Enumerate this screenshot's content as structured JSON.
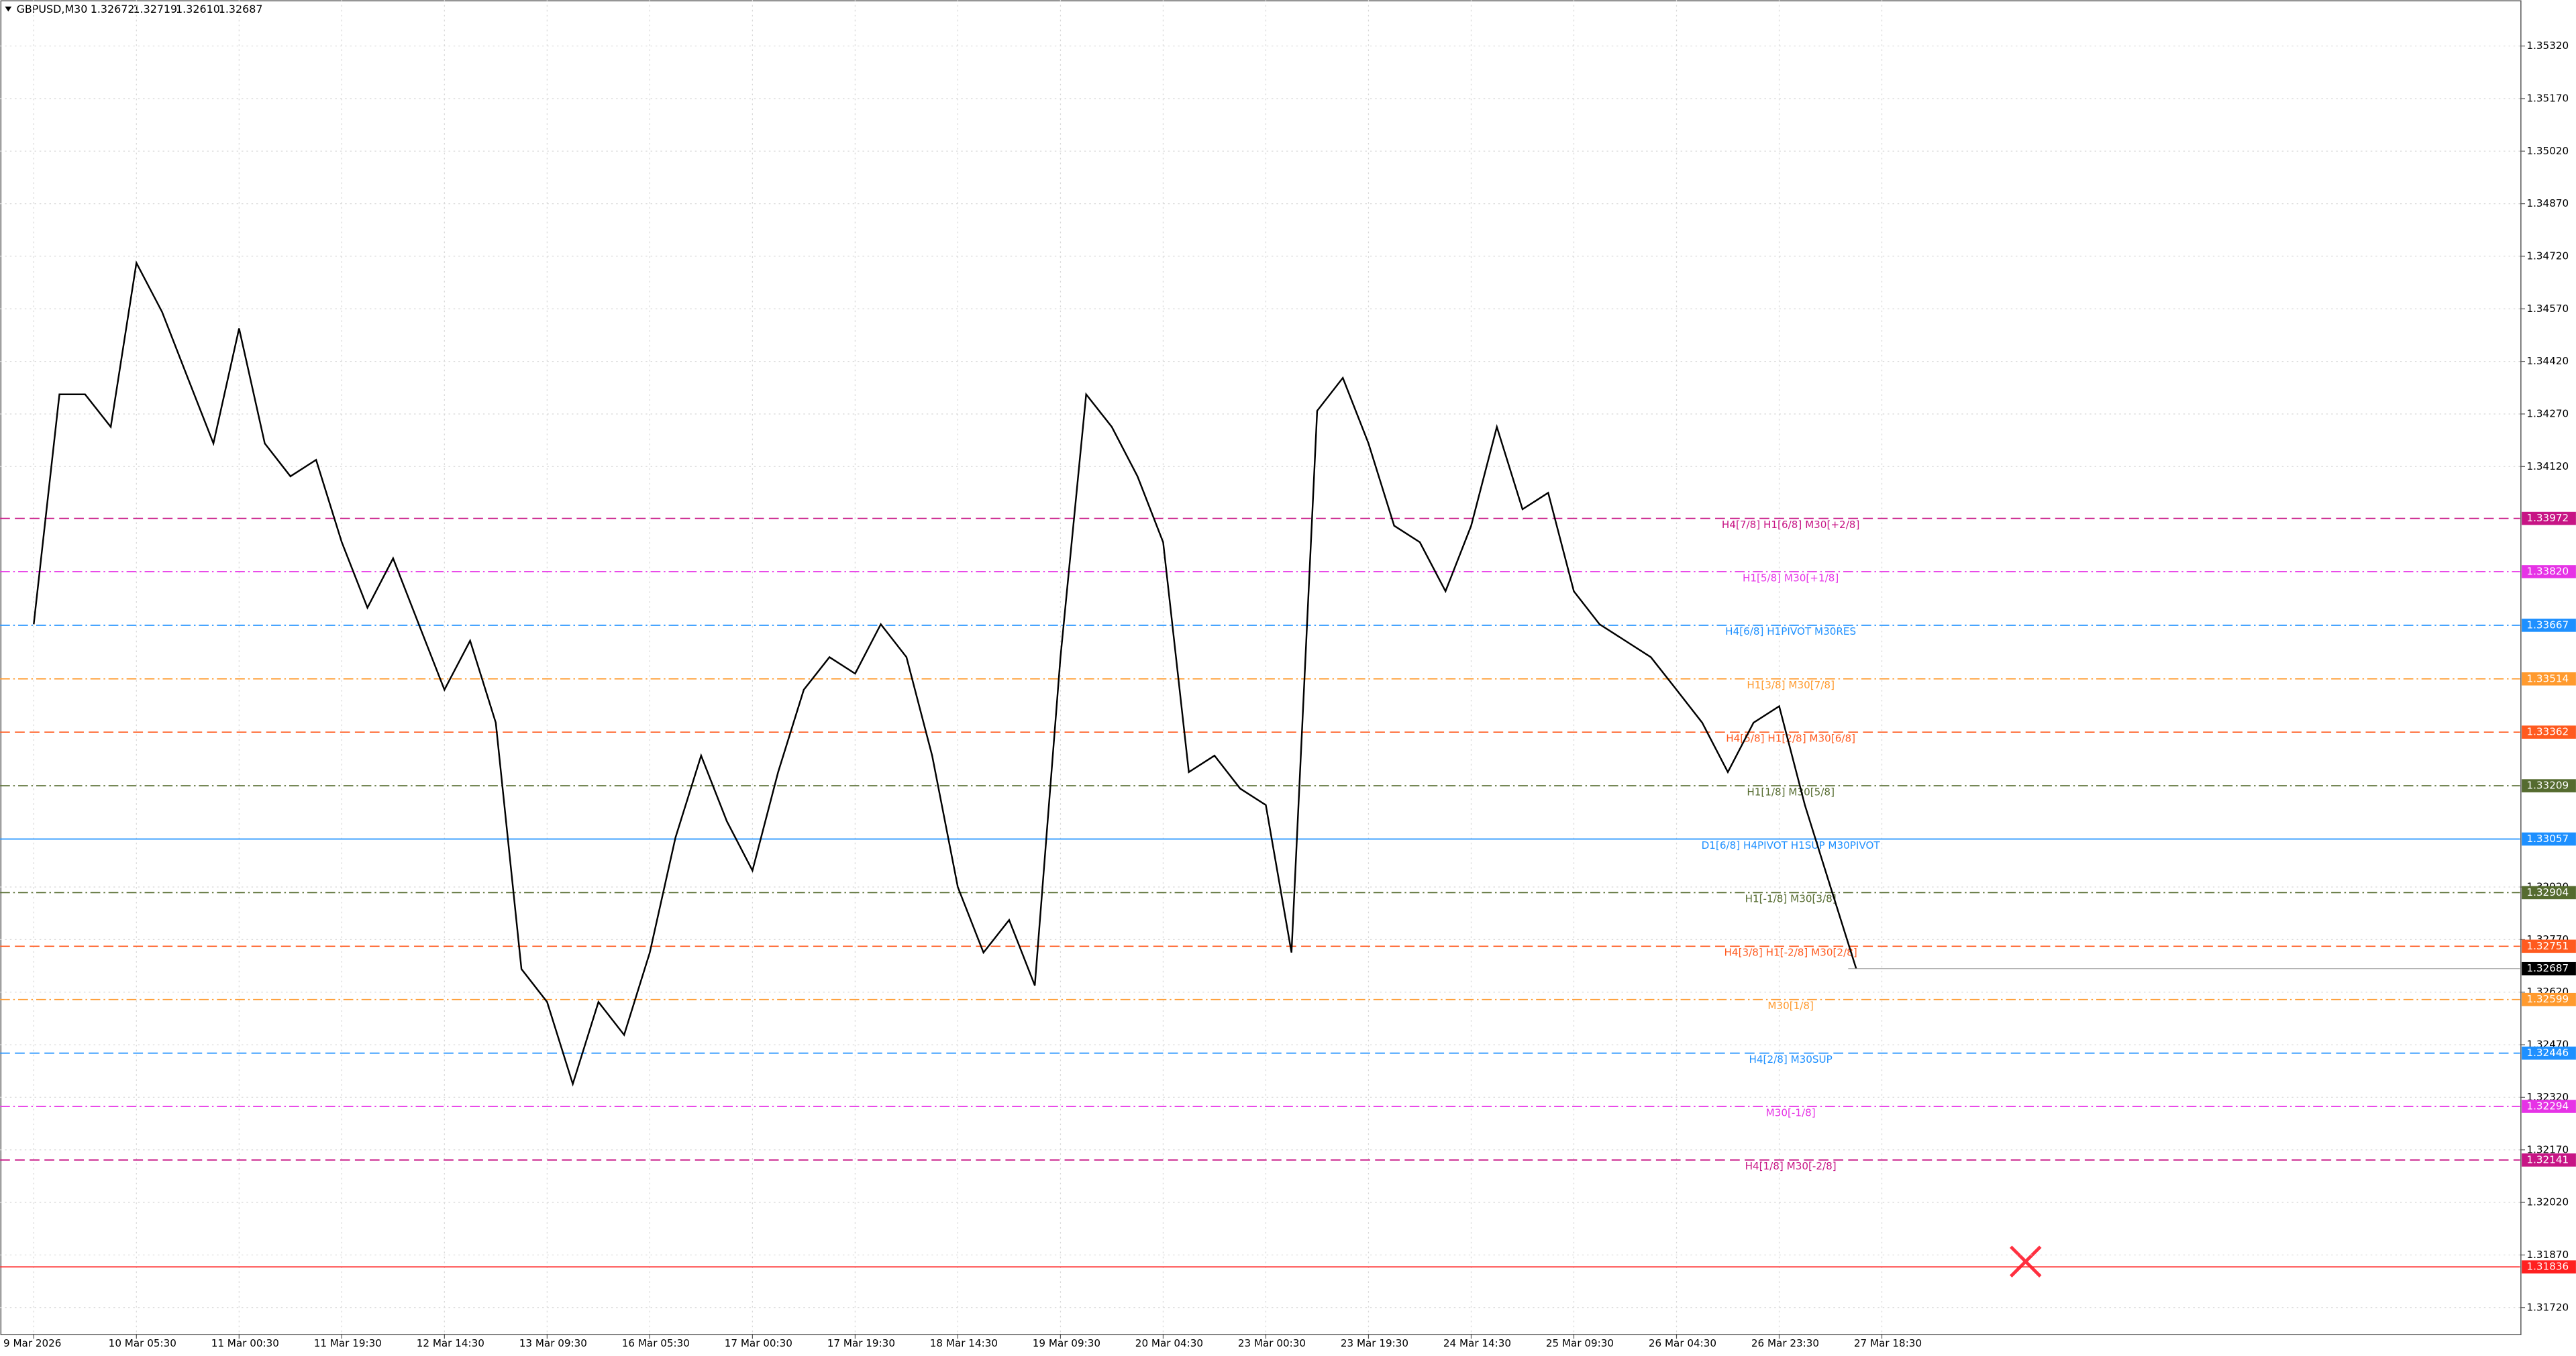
{
  "header": {
    "symbol": "GBPUSD,M30",
    "quotes": [
      "1.32672",
      "1.32719",
      "1.32610",
      "1.32687"
    ]
  },
  "chart_data": {
    "type": "line",
    "color": "#000000",
    "grid": true,
    "categories": [
      "9 Mar 2026",
      null,
      null,
      null,
      "10 Mar 05:30",
      null,
      null,
      null,
      "11 Mar 00:30",
      null,
      null,
      null,
      "11 Mar 19:30",
      null,
      null,
      null,
      "12 Mar 14:30",
      null,
      null,
      null,
      "13 Mar 09:30",
      null,
      null,
      null,
      "16 Mar 05:30",
      null,
      null,
      null,
      "17 Mar 00:30",
      null,
      null,
      null,
      "17 Mar 19:30",
      null,
      null,
      null,
      "18 Mar 14:30",
      null,
      null,
      null,
      "19 Mar 09:30",
      null,
      null,
      null,
      "20 Mar 04:30",
      null,
      null,
      null,
      "23 Mar 00:30",
      null,
      null,
      null,
      "23 Mar 19:30",
      null,
      null,
      null,
      "24 Mar 14:30",
      null,
      null,
      null,
      "25 Mar 09:30",
      null,
      null,
      null,
      "26 Mar 04:30",
      null,
      null,
      null,
      "26 Mar 23:30",
      null,
      null,
      null,
      "27 Mar 18:30"
    ],
    "values": [
      1.3367,
      1.34326,
      1.34326,
      1.34233,
      1.34701,
      1.34561,
      1.34373,
      1.34186,
      1.34514,
      1.34186,
      1.34092,
      1.34139,
      1.33904,
      1.33717,
      1.33858,
      1.3367,
      1.33483,
      1.33623,
      1.33389,
      1.32686,
      1.32592,
      1.32358,
      1.32592,
      1.32498,
      1.32733,
      1.33061,
      1.33295,
      1.33108,
      1.32967,
      1.33248,
      1.33483,
      1.33576,
      1.33529,
      1.3367,
      1.33576,
      1.33295,
      1.3292,
      1.32733,
      1.32826,
      1.32639,
      1.33576,
      1.34326,
      1.34233,
      1.34092,
      1.33904,
      1.33248,
      1.33295,
      1.33201,
      1.33154,
      1.32733,
      1.34279,
      1.34373,
      1.34186,
      1.33951,
      1.33904,
      1.33764,
      1.33951,
      1.34233,
      1.33998,
      1.34045,
      1.33764,
      1.3367,
      1.33623,
      1.33576,
      1.33483,
      1.33389,
      1.33248,
      1.33389,
      1.33436,
      1.33154,
      1.3292,
      1.32687,
      null
    ],
    "ylim": [
      1.31645,
      1.354513
    ],
    "yticks": [
      {
        "value": 1.3532,
        "label": "1.35320"
      },
      {
        "value": 1.3517,
        "label": "1.35170"
      },
      {
        "value": 1.3502,
        "label": "1.35020"
      },
      {
        "value": 1.3487,
        "label": "1.34870"
      },
      {
        "value": 1.3472,
        "label": "1.34720"
      },
      {
        "value": 1.3457,
        "label": "1.34570"
      },
      {
        "value": 1.3442,
        "label": "1.34420"
      },
      {
        "value": 1.3427,
        "label": "1.34270"
      },
      {
        "value": 1.3412,
        "label": "1.34120"
      },
      {
        "value": 1.3292,
        "label": "1.32920"
      },
      {
        "value": 1.3277,
        "label": "1.32770"
      },
      {
        "value": 1.3262,
        "label": "1.32620"
      },
      {
        "value": 1.3247,
        "label": "1.32470"
      },
      {
        "value": 1.3232,
        "label": "1.32320"
      },
      {
        "value": 1.3217,
        "label": "1.32170"
      },
      {
        "value": 1.3202,
        "label": "1.32020"
      },
      {
        "value": 1.3187,
        "label": "1.31870"
      },
      {
        "value": 1.3172,
        "label": "1.31720"
      }
    ],
    "levels": [
      {
        "price": 1.33972,
        "price_label": "1.33972",
        "label": "H4[7/8] H1[6/8] M30[+2/8]",
        "color": "#c71585",
        "dash": "dashed"
      },
      {
        "price": 1.3382,
        "price_label": "1.33820",
        "label": "H1[5/8] M30[+1/8]",
        "color": "#e633e6",
        "dash": "dashdot"
      },
      {
        "price": 1.33667,
        "price_label": "1.33667",
        "label": "H4[6/8] H1PIVOT M30RES",
        "color": "#1e90ff",
        "dash": "dashdot"
      },
      {
        "price": 1.33514,
        "price_label": "1.33514",
        "label": "H1[3/8] M30[7/8]",
        "color": "#ff9a2e",
        "dash": "dashdot"
      },
      {
        "price": 1.33362,
        "price_label": "1.33362",
        "label": "H4[5/8] H1[2/8] M30[6/8]",
        "color": "#ff5a1f",
        "dash": "dashed"
      },
      {
        "price": 1.33209,
        "price_label": "1.33209",
        "label": "H1[1/8] M30[5/8]",
        "color": "#556b2f",
        "dash": "dashdot"
      },
      {
        "price": 1.33057,
        "price_label": "1.33057",
        "label": "D1[6/8] H4PIVOT H1SUP M30PIVOT",
        "color": "#1e90ff",
        "dash": "solid"
      },
      {
        "price": 1.32904,
        "price_label": "1.32904",
        "label": "H1[-1/8] M30[3/8]",
        "color": "#556b2f",
        "dash": "dashdot"
      },
      {
        "price": 1.32751,
        "price_label": "1.32751",
        "label": "H4[3/8] H1[-2/8] M30[2/8]",
        "color": "#ff5a1f",
        "dash": "dashed"
      },
      {
        "price": 1.32599,
        "price_label": "1.32599",
        "label": "M30[1/8]",
        "color": "#ff9a2e",
        "dash": "dashdot"
      },
      {
        "price": 1.32446,
        "price_label": "1.32446",
        "label": "H4[2/8] M30SUP",
        "color": "#1e90ff",
        "dash": "dashed"
      },
      {
        "price": 1.32294,
        "price_label": "1.32294",
        "label": "M30[-1/8]",
        "color": "#e633e6",
        "dash": "dashdot"
      },
      {
        "price": 1.32141,
        "price_label": "1.32141",
        "label": "H4[1/8] M30[-2/8]",
        "color": "#c71585",
        "dash": "dashed"
      },
      {
        "price": 1.31836,
        "price_label": "1.31836",
        "color": "#ff2020",
        "dash": "solid"
      }
    ],
    "last": {
      "price": 1.32687,
      "price_label": "1.32687",
      "color": "#000000"
    }
  }
}
